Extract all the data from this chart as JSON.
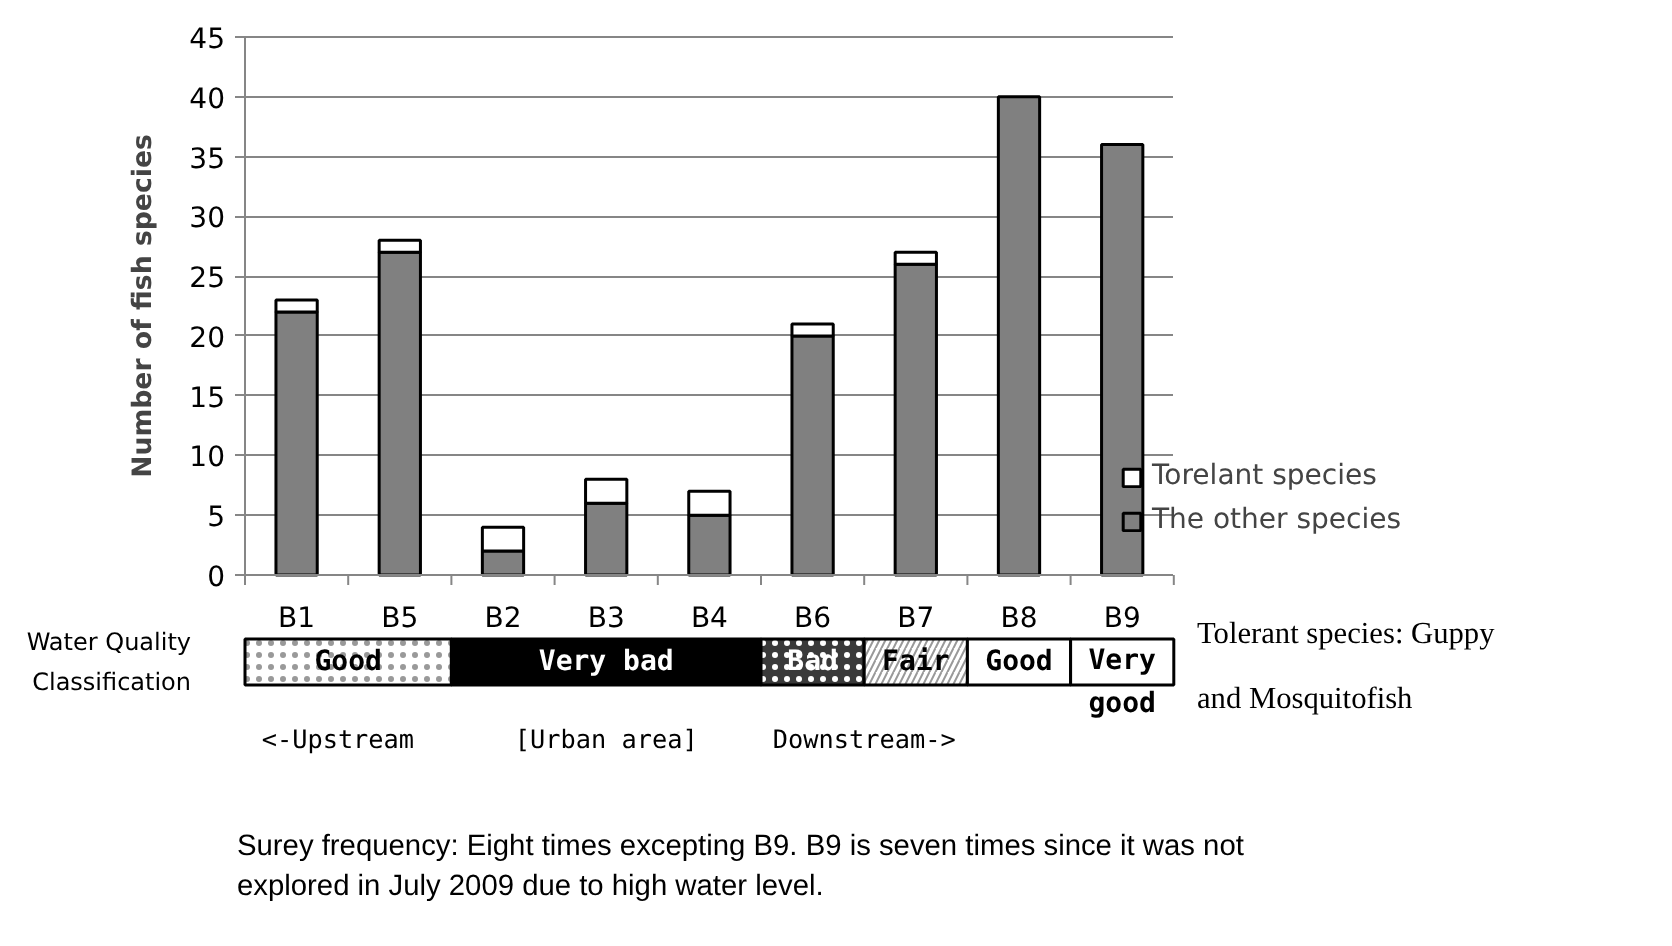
{
  "chart_data": {
    "type": "bar",
    "stacked": true,
    "ylabel": "Number of fish species",
    "categories": [
      "B1",
      "B5",
      "B2",
      "B3",
      "B4",
      "B6",
      "B7",
      "B8",
      "B9"
    ],
    "series": [
      {
        "name": "The other species",
        "color": "#808080",
        "values": [
          22,
          27,
          2,
          6,
          5,
          20,
          26,
          40,
          36
        ]
      },
      {
        "name": "Torelant species",
        "color": "#ffffff",
        "values": [
          1,
          1,
          2,
          2,
          2,
          1,
          1,
          0,
          0
        ]
      }
    ],
    "ylim": [
      0,
      45
    ],
    "yticks": [
      0,
      5,
      10,
      15,
      20,
      25,
      30,
      35,
      40,
      45
    ],
    "grid": "y",
    "legend": "right",
    "annotations": [
      "Water Quality Classification",
      "Good",
      "Very bad",
      "Bad",
      "Fair",
      "Good",
      "Very good",
      "<-Upstream",
      "[Urban area]",
      "Downstream->",
      "Tolerant species: Guppy and Mosquitofish",
      "Surey frequency:  Eight times excepting B9.  B9 is seven times since it was not explored in July 2009 due to high water level."
    ]
  }
}
